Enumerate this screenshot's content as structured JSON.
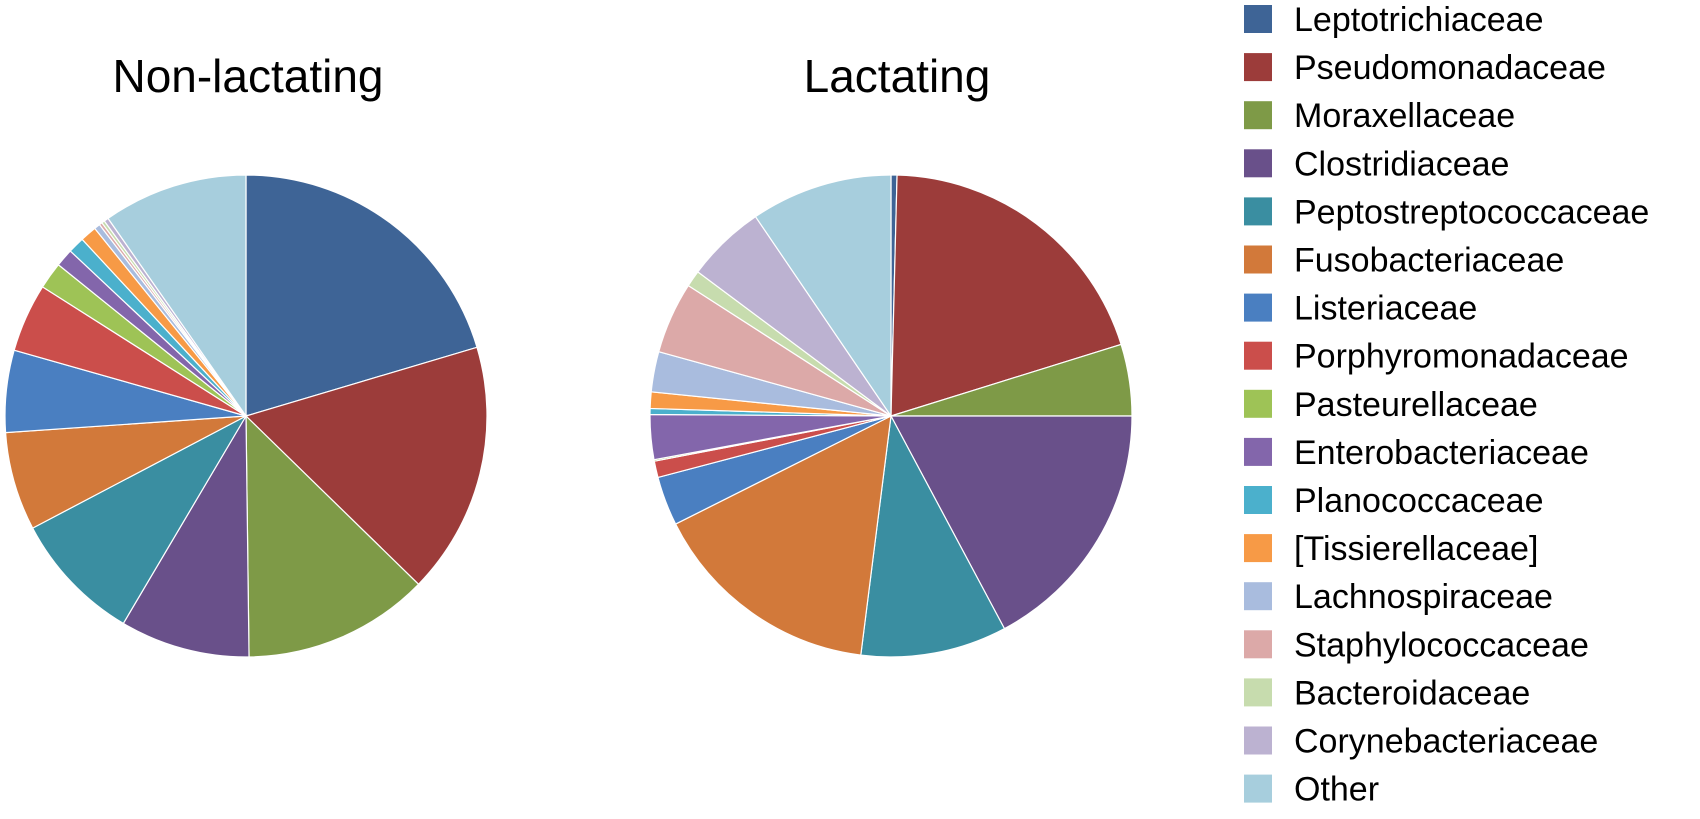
{
  "chart_data": [
    {
      "type": "pie",
      "title": "Non-lactating",
      "categories": [
        "Leptotrichiaceae",
        "Pseudomonadaceae",
        "Moraxellaceae",
        "Clostridiaceae",
        "Peptostreptococcaceae",
        "Fusobacteriaceae",
        "Listeriaceae",
        "Porphyromonadaceae",
        "Pasteurellaceae",
        "Enterobacteriaceae",
        "Planococcaceae",
        "[Tissierellaceae]",
        "Lachnospiraceae",
        "Staphylococcaceae",
        "Bacteroidaceae",
        "Corynebacteriaceae",
        "Other"
      ],
      "values": [
        20.4,
        16.9,
        12.5,
        8.7,
        8.8,
        6.6,
        5.5,
        4.6,
        1.8,
        1.2,
        1.1,
        1.1,
        0.4,
        0.2,
        0.2,
        0.3,
        9.7
      ],
      "colors": [
        "#3e6496",
        "#9c3c3a",
        "#7e9a47",
        "#69508a",
        "#3a8ea1",
        "#d2793a",
        "#4a7fc1",
        "#cb4e4b",
        "#9ec356",
        "#8366ab",
        "#4bb0cc",
        "#f79a46",
        "#a9bcde",
        "#dca9a8",
        "#c7dcae",
        "#bcb2d1",
        "#a7cedd"
      ]
    },
    {
      "type": "pie",
      "title": "Lactating",
      "categories": [
        "Leptotrichiaceae",
        "Pseudomonadaceae",
        "Moraxellaceae",
        "Clostridiaceae",
        "Peptostreptococcaceae",
        "Fusobacteriaceae",
        "Listeriaceae",
        "Porphyromonadaceae",
        "Pasteurellaceae",
        "Enterobacteriaceae",
        "Planococcaceae",
        "[Tissierellaceae]",
        "Lachnospiraceae",
        "Staphylococcaceae",
        "Bacteroidaceae",
        "Corynebacteriaceae",
        "Other"
      ],
      "values": [
        0.4,
        19.8,
        4.8,
        17.2,
        9.8,
        15.6,
        3.3,
        1.1,
        0.1,
        3.0,
        0.4,
        1.1,
        2.7,
        4.8,
        1.1,
        5.3,
        9.5
      ],
      "colors": [
        "#3e6496",
        "#9c3c3a",
        "#7e9a47",
        "#69508a",
        "#3a8ea1",
        "#d2793a",
        "#4a7fc1",
        "#cb4e4b",
        "#9ec356",
        "#8366ab",
        "#4bb0cc",
        "#f79a46",
        "#a9bcde",
        "#dca9a8",
        "#c7dcae",
        "#bcb2d1",
        "#a7cedd"
      ]
    }
  ],
  "legend": {
    "placement": "right",
    "items": [
      {
        "label": "Leptotrichiaceae",
        "color": "#3e6496"
      },
      {
        "label": "Pseudomonadaceae",
        "color": "#9c3c3a"
      },
      {
        "label": "Moraxellaceae",
        "color": "#7e9a47"
      },
      {
        "label": "Clostridiaceae",
        "color": "#69508a"
      },
      {
        "label": "Peptostreptococcaceae",
        "color": "#3a8ea1"
      },
      {
        "label": "Fusobacteriaceae",
        "color": "#d2793a"
      },
      {
        "label": "Listeriaceae",
        "color": "#4a7fc1"
      },
      {
        "label": "Porphyromonadaceae",
        "color": "#cb4e4b"
      },
      {
        "label": "Pasteurellaceae",
        "color": "#9ec356"
      },
      {
        "label": "Enterobacteriaceae",
        "color": "#8366ab"
      },
      {
        "label": "Planococcaceae",
        "color": "#4bb0cc"
      },
      {
        "label": "[Tissierellaceae]",
        "color": "#f79a46"
      },
      {
        "label": "Lachnospiraceae",
        "color": "#a9bcde"
      },
      {
        "label": "Staphylococcaceae",
        "color": "#dca9a8"
      },
      {
        "label": "Bacteroidaceae",
        "color": "#c7dcae"
      },
      {
        "label": "Corynebacteriaceae",
        "color": "#bcb2d1"
      },
      {
        "label": "Other",
        "color": "#a7cedd"
      }
    ]
  }
}
